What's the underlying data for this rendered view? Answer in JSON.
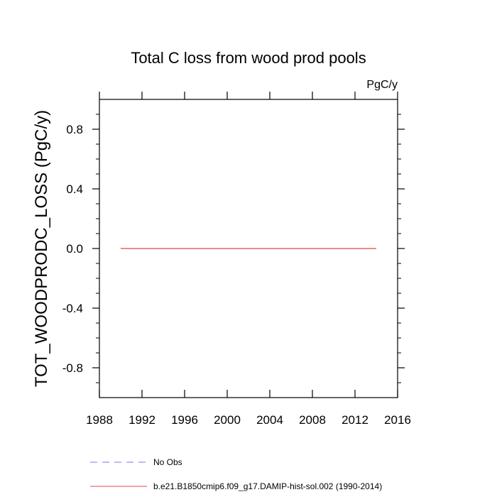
{
  "chart_data": {
    "type": "line",
    "title": "Total C loss from wood prod pools",
    "units": "PgC/y",
    "xlabel": "",
    "ylabel": "TOT_WOODPRODC_LOSS  (PgC/y)",
    "xlim": [
      1988,
      2016
    ],
    "ylim": [
      -1.0,
      1.0
    ],
    "x_major_ticks": [
      1988,
      1992,
      1996,
      2000,
      2004,
      2008,
      2012,
      2016
    ],
    "x_tick_labels": [
      "1988",
      "1992",
      "1996",
      "2000",
      "2004",
      "2008",
      "2012",
      "2016"
    ],
    "x_minor_ticks": [],
    "y_major_ticks": [
      -0.8,
      -0.4,
      0.0,
      0.4,
      0.8
    ],
    "y_tick_labels": [
      "-0.8",
      "-0.4",
      "0.0",
      "0.4",
      "0.8"
    ],
    "y_minor_step": 0.1,
    "grid": false,
    "legend_position": "bottom",
    "series": [
      {
        "name": "No Obs",
        "color": "#7777ee",
        "dash": "dashed",
        "x": [],
        "y": []
      },
      {
        "name": "b.e21.B1850cmip6.f09_g17.DAMIP-hist-sol.002 (1990-2014)",
        "color": "#e0484c",
        "dash": "solid",
        "x": [
          1990,
          1991,
          1992,
          1993,
          1994,
          1995,
          1996,
          1997,
          1998,
          1999,
          2000,
          2001,
          2002,
          2003,
          2004,
          2005,
          2006,
          2007,
          2008,
          2009,
          2010,
          2011,
          2012,
          2013,
          2014
        ],
        "y": [
          0,
          0,
          0,
          0,
          0,
          0,
          0,
          0,
          0,
          0,
          0,
          0,
          0,
          0,
          0,
          0,
          0,
          0,
          0,
          0,
          0,
          0,
          0,
          0,
          0
        ]
      }
    ]
  }
}
